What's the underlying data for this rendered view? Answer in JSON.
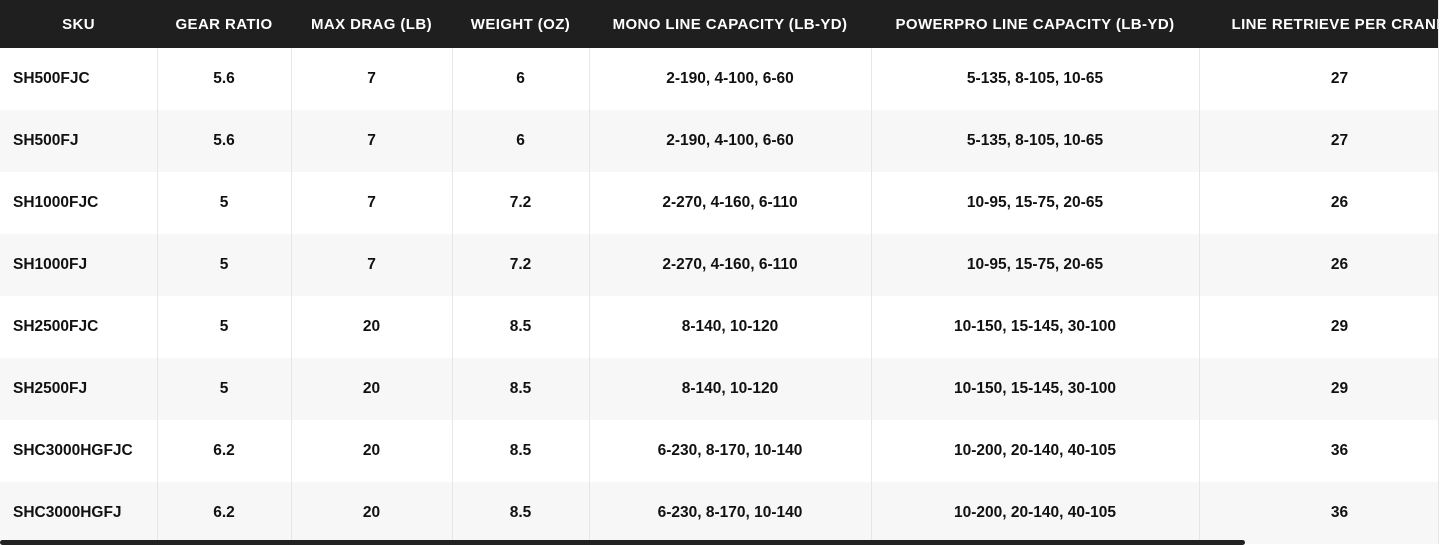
{
  "table": {
    "columns": [
      "SKU",
      "GEAR RATIO",
      "MAX DRAG (LB)",
      "WEIGHT (OZ)",
      "MONO LINE CAPACITY (LB-YD)",
      "POWERPRO LINE CAPACITY (LB-YD)",
      "LINE RETRIEVE PER CRANK"
    ],
    "rows": [
      [
        "SH500FJC",
        "5.6",
        "7",
        "6",
        "2-190, 4-100, 6-60",
        "5-135, 8-105, 10-65",
        "27"
      ],
      [
        "SH500FJ",
        "5.6",
        "7",
        "6",
        "2-190, 4-100, 6-60",
        "5-135, 8-105, 10-65",
        "27"
      ],
      [
        "SH1000FJC",
        "5",
        "7",
        "7.2",
        "2-270, 4-160, 6-110",
        "10-95, 15-75, 20-65",
        "26"
      ],
      [
        "SH1000FJ",
        "5",
        "7",
        "7.2",
        "2-270, 4-160, 6-110",
        "10-95, 15-75, 20-65",
        "26"
      ],
      [
        "SH2500FJC",
        "5",
        "20",
        "8.5",
        "8-140, 10-120",
        "10-150, 15-145, 30-100",
        "29"
      ],
      [
        "SH2500FJ",
        "5",
        "20",
        "8.5",
        "8-140, 10-120",
        "10-150, 15-145, 30-100",
        "29"
      ],
      [
        "SHC3000HGFJC",
        "6.2",
        "20",
        "8.5",
        "6-230, 8-170, 10-140",
        "10-200, 20-140, 40-105",
        "36"
      ],
      [
        "SHC3000HGFJ",
        "6.2",
        "20",
        "8.5",
        "6-230, 8-170, 10-140",
        "10-200, 20-140, 40-105",
        "36"
      ]
    ]
  },
  "colors": {
    "header_bg": "#1f1f1f",
    "row_alt_bg": "#f7f7f7"
  }
}
